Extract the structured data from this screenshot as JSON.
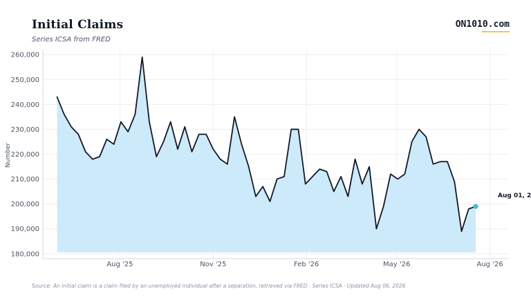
{
  "header": {
    "title": "Initial Claims",
    "subtitle": "Series ICSA from FRED",
    "brand": "ON1010.com"
  },
  "footer": {
    "source": "Source: An initial claim is a claim filed by an unemployed individual after a separation, retrieved via FRED · Series ICSA · Updated Aug 06, 2026"
  },
  "colors": {
    "line": "#111827",
    "fill": "#cdeafa",
    "marker": "#4ab6e8",
    "grid": "#eeeeee",
    "brand_underline": "#f5c451"
  },
  "chart_data": {
    "type": "area",
    "title": "Initial Claims",
    "subtitle": "Series ICSA from FRED",
    "ylabel": "Number",
    "xlabel": "",
    "ylim": [
      178000,
      262000
    ],
    "yticks": [
      180000,
      190000,
      200000,
      210000,
      220000,
      230000,
      240000,
      250000,
      260000
    ],
    "ytick_labels": [
      "180,000",
      "190,000",
      "200,000",
      "210,000",
      "220,000",
      "230,000",
      "240,000",
      "250,000",
      "260,000"
    ],
    "xlim": [
      "2025-05-17",
      "2026-08-19"
    ],
    "xticks": [
      "2025-08-01",
      "2025-11-01",
      "2026-02-01",
      "2026-05-01",
      "2026-08-01"
    ],
    "xtick_labels": [
      "Aug '25",
      "Nov '25",
      "Feb '26",
      "May '26",
      "Aug '26"
    ],
    "grid": true,
    "end_label": "Aug 01, 2",
    "series": [
      {
        "dates": [
          "2025-05-31",
          "2025-06-07",
          "2025-06-14",
          "2025-06-21",
          "2025-06-28",
          "2025-07-05",
          "2025-07-12",
          "2025-07-19",
          "2025-07-26",
          "2025-08-02",
          "2025-08-09",
          "2025-08-16",
          "2025-08-23",
          "2025-08-30",
          "2025-09-06",
          "2025-09-13",
          "2025-09-20",
          "2025-09-27",
          "2025-10-04",
          "2025-10-11",
          "2025-10-18",
          "2025-10-25",
          "2025-11-01",
          "2025-11-08",
          "2025-11-15",
          "2025-11-22",
          "2025-11-29",
          "2025-12-06",
          "2025-12-13",
          "2025-12-20",
          "2025-12-27",
          "2026-01-03",
          "2026-01-10",
          "2026-01-17",
          "2026-01-24",
          "2026-01-31",
          "2026-02-07",
          "2026-02-14",
          "2026-02-21",
          "2026-02-28",
          "2026-03-07",
          "2026-03-14",
          "2026-03-21",
          "2026-03-28",
          "2026-04-04",
          "2026-04-11",
          "2026-04-18",
          "2026-04-25",
          "2026-05-02",
          "2026-05-09",
          "2026-05-16",
          "2026-05-23",
          "2026-05-30",
          "2026-06-06",
          "2026-06-13",
          "2026-06-20",
          "2026-06-27",
          "2026-07-04",
          "2026-07-11",
          "2026-07-18",
          "2026-07-25",
          "2026-08-01"
        ],
        "values": [
          243000,
          236000,
          231000,
          228000,
          221000,
          218000,
          219000,
          226000,
          224000,
          233000,
          229000,
          236000,
          259000,
          233000,
          219000,
          225000,
          233000,
          222000,
          231000,
          221000,
          228000,
          228000,
          222000,
          218000,
          216000,
          235000,
          224000,
          215000,
          203000,
          207000,
          201000,
          210000,
          211000,
          230000,
          230000,
          208000,
          211000,
          214000,
          213000,
          205000,
          211000,
          203000,
          218000,
          208000,
          215000,
          190000,
          199000,
          212000,
          210000,
          212000,
          225000,
          230000,
          227000,
          216000,
          217000,
          217000,
          209000,
          189000,
          198000,
          199000,
          null,
          null
        ]
      }
    ]
  }
}
